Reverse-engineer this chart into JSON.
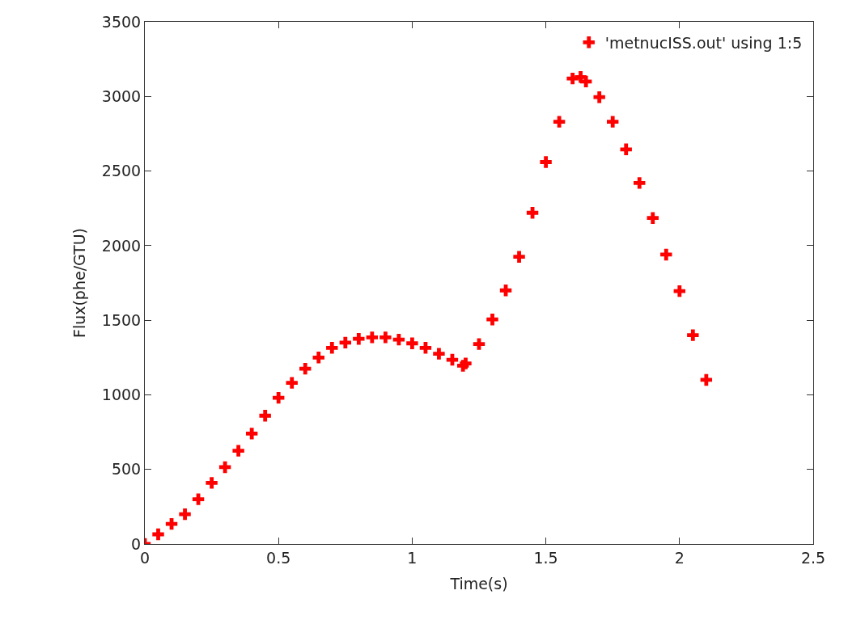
{
  "chart_data": {
    "type": "scatter",
    "xlabel": "Time(s)",
    "ylabel": "Flux(phe/GTU)",
    "x": [
      0,
      0.05,
      0.1,
      0.15,
      0.2,
      0.25,
      0.3,
      0.35,
      0.4,
      0.45,
      0.5,
      0.55,
      0.6,
      0.65,
      0.7,
      0.75,
      0.8,
      0.85,
      0.9,
      0.95,
      1.0,
      1.05,
      1.1,
      1.15,
      1.19,
      1.2,
      1.25,
      1.3,
      1.35,
      1.4,
      1.45,
      1.5,
      1.55,
      1.6,
      1.63,
      1.65,
      1.7,
      1.75,
      1.8,
      1.85,
      1.9,
      1.95,
      2.0,
      2.05,
      2.1
    ],
    "series": [
      {
        "name": "'metnucISS.out' using 1:5",
        "color": "#ff0000",
        "values": [
          0,
          65,
          135,
          200,
          300,
          410,
          515,
          625,
          740,
          860,
          980,
          1080,
          1175,
          1250,
          1315,
          1350,
          1375,
          1385,
          1385,
          1370,
          1345,
          1315,
          1275,
          1235,
          1195,
          1210,
          1340,
          1505,
          1700,
          1925,
          2220,
          2560,
          2830,
          3120,
          3130,
          3100,
          2995,
          2830,
          2645,
          2420,
          2185,
          1940,
          1695,
          1400,
          1100
        ]
      }
    ],
    "xlim": [
      0,
      2.5
    ],
    "xticks": [
      0,
      0.5,
      1,
      1.5,
      2,
      2.5
    ],
    "ylim": [
      0,
      3500
    ],
    "yticks": [
      0,
      500,
      1000,
      1500,
      2000,
      2500,
      3000,
      3500
    ],
    "legend": "top right",
    "marker": "cross"
  }
}
